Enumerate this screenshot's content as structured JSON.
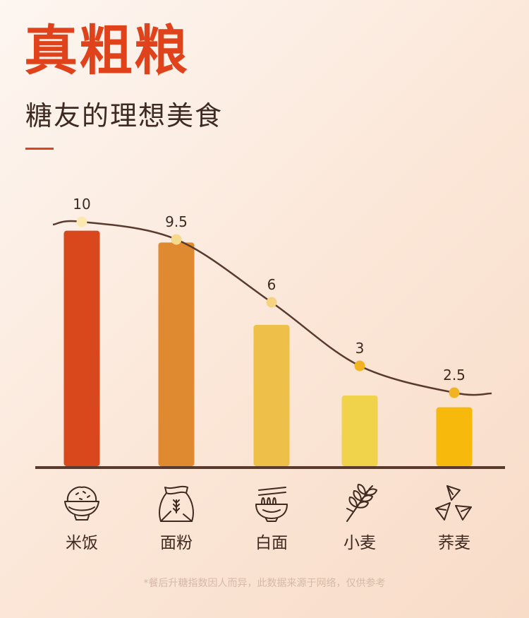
{
  "header": {
    "title": "真粗粮",
    "subtitle": "糖友的理想美食"
  },
  "chart_data": {
    "type": "bar",
    "categories": [
      "米饭",
      "面粉",
      "白面",
      "小麦",
      "荞麦"
    ],
    "values": [
      10,
      9.5,
      6,
      3,
      2.5
    ],
    "value_labels": [
      "10",
      "9.5",
      "6",
      "3",
      "2.5"
    ],
    "overlay": "smooth-line",
    "ylim": [
      0,
      12
    ],
    "grid": false,
    "legend": "none",
    "bar_colors": [
      "#d9481c",
      "#df8a31",
      "#eec049",
      "#f0d34a",
      "#f6b90c"
    ],
    "dot_colors": [
      "#fbe7b0",
      "#f7d98c",
      "#f5d383",
      "#f2b322",
      "#f2b322"
    ],
    "icons": [
      "rice-bowl-icon",
      "flour-bag-icon",
      "noodle-bowl-icon",
      "wheat-icon",
      "buckwheat-icon"
    ]
  },
  "footnote": "*餐后升糖指数因人而异，此数据来源于网络，仅供参考",
  "colors": {
    "accent": "#e0431b",
    "text": "#3e2a20",
    "axis": "#5a3a2c",
    "curve": "#5a3a2c"
  }
}
